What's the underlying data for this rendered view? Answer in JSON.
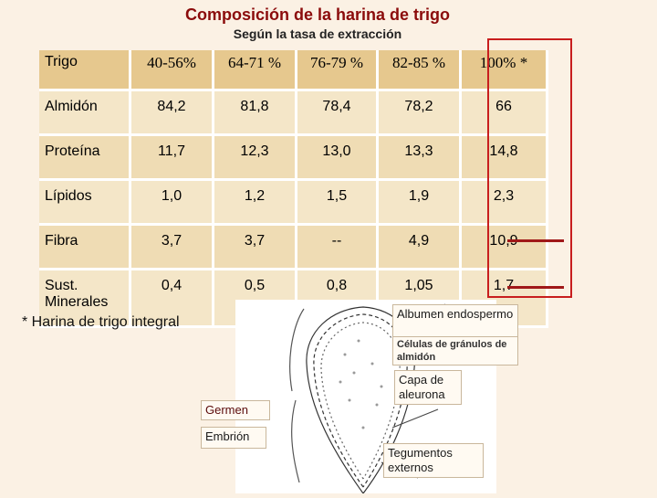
{
  "title": "Composición de la harina de trigo",
  "subtitle": "Según la tasa de extracción",
  "table": {
    "headers": [
      "Trigo",
      "40-56%",
      "64-71 %",
      "76-79 %",
      "82-85 %",
      "100% *"
    ],
    "rows": [
      {
        "label": "Almidón",
        "values": [
          "84,2",
          "81,8",
          "78,4",
          "78,2",
          "66"
        ]
      },
      {
        "label": "Proteína",
        "values": [
          "11,7",
          "12,3",
          "13,0",
          "13,3",
          "14,8"
        ]
      },
      {
        "label": "Lípidos",
        "values": [
          "1,0",
          "1,2",
          "1,5",
          "1,9",
          "2,3"
        ]
      },
      {
        "label": "Fibra",
        "values": [
          "3,7",
          "3,7",
          "--",
          "4,9",
          "10,9"
        ]
      },
      {
        "label": "Sust. Minerales",
        "values": [
          "0,4",
          "0,5",
          "0,8",
          "1,05",
          "1,7"
        ]
      }
    ]
  },
  "footnote": "* Harina de trigo integral",
  "diagram_labels": {
    "albumen": "Albumen endospermo",
    "granulos": "Células de gránulos de almidón",
    "aleurona": "Capa de aleurona",
    "germen": "Germen",
    "embrion": "Embrión",
    "tegumentos": "Tegumentos externos"
  },
  "colors": {
    "title": "#8b0b0b",
    "highlight_box": "#c81e1e",
    "header_fill": "#e6c88e",
    "row_fill": "#f4e6c8"
  }
}
